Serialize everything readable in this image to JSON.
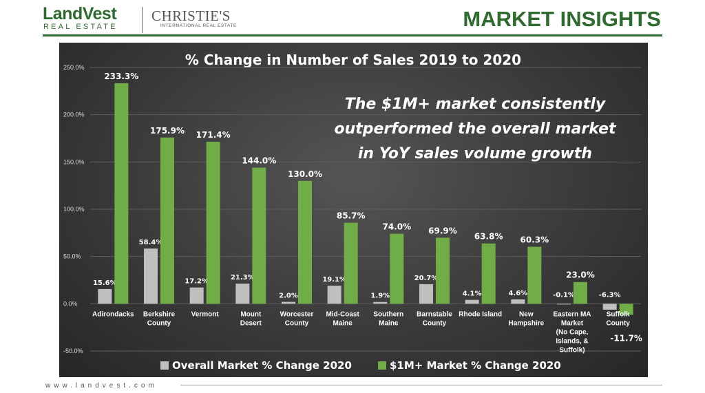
{
  "header": {
    "brand_main": "LandVest",
    "brand_sub": "REAL ESTATE",
    "partner_main": "CHRISTIE'S",
    "partner_sub": "INTERNATIONAL REAL ESTATE",
    "page_title": "MARKET INSIGHTS"
  },
  "footer": {
    "url": "www.landvest.com"
  },
  "chart_data": {
    "type": "bar",
    "title": "% Change in Number of Sales 2019 to 2020",
    "annotation": [
      "The $1M+ market consistently",
      "outperformed the overall market",
      "in YoY sales volume growth"
    ],
    "categories": [
      [
        "Adirondacks"
      ],
      [
        "Berkshire",
        "County"
      ],
      [
        "Vermont"
      ],
      [
        "Mount",
        "Desert"
      ],
      [
        "Worcester",
        "County"
      ],
      [
        "Mid-Coast",
        "Maine"
      ],
      [
        "Southern",
        "Maine"
      ],
      [
        "Barnstable",
        "County"
      ],
      [
        "Rhode Island"
      ],
      [
        "New",
        "Hampshire"
      ],
      [
        "Eastern MA",
        "Market",
        "(No Cape,",
        "Islands, &",
        "Suffolk)"
      ],
      [
        "Suffolk",
        "County"
      ]
    ],
    "series": [
      {
        "name": "Overall Market % Change 2020",
        "color": "#bfbfbf",
        "values": [
          15.6,
          58.4,
          17.2,
          21.3,
          2.0,
          19.1,
          1.9,
          20.7,
          4.1,
          4.6,
          -0.1,
          -6.3
        ],
        "labels": [
          "15.6%",
          "58.4%",
          "17.2%",
          "21.3%",
          "2.0%",
          "19.1%",
          "1.9%",
          "20.7%",
          "4.1%",
          "4.6%",
          "-0.1%",
          "-6.3%"
        ]
      },
      {
        "name": "$1M+ Market % Change 2020",
        "color": "#70ad47",
        "values": [
          233.3,
          175.9,
          171.4,
          144.0,
          130.0,
          85.7,
          74.0,
          69.9,
          63.8,
          60.3,
          23.0,
          -11.7
        ],
        "labels": [
          "233.3%",
          "175.9%",
          "171.4%",
          "144.0%",
          "130.0%",
          "85.7%",
          "74.0%",
          "69.9%",
          "63.8%",
          "60.3%",
          "23.0%",
          "-11.7%"
        ]
      }
    ],
    "yticks": [
      "-50.0%",
      "0.0%",
      "50.0%",
      "100.0%",
      "150.0%",
      "200.0%",
      "250.0%"
    ],
    "ylim": [
      -50,
      250
    ],
    "grid": true,
    "legend_position": "bottom"
  }
}
